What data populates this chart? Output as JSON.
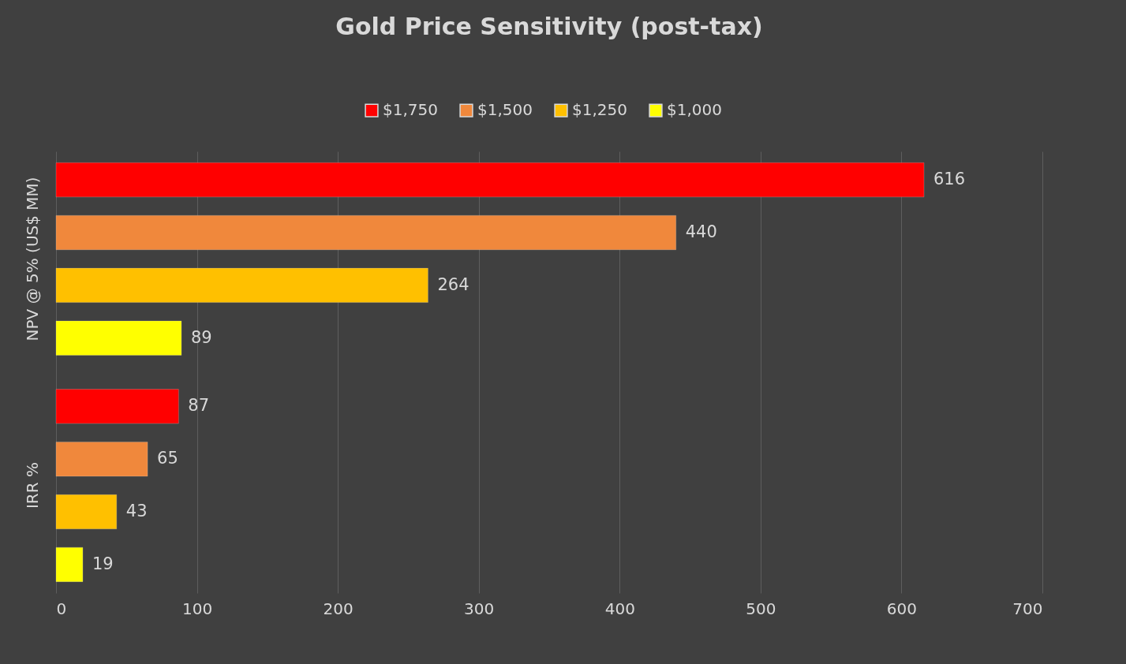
{
  "chart_data": {
    "type": "bar",
    "orientation": "horizontal",
    "title": "Gold Price Sensitivity (post-tax)",
    "categories": [
      "NPV @ 5% (US$ MM)",
      "IRR %"
    ],
    "series": [
      {
        "name": "$1,750",
        "color": "#ff0000",
        "values": [
          616,
          87
        ]
      },
      {
        "name": "$1,500",
        "color": "#f0883c",
        "values": [
          440,
          65
        ]
      },
      {
        "name": "$1,250",
        "color": "#ffc000",
        "values": [
          264,
          43
        ]
      },
      {
        "name": "$1,000",
        "color": "#ffff00",
        "values": [
          89,
          19
        ]
      }
    ],
    "xlim": [
      0,
      700
    ],
    "xticks": [
      0,
      100,
      200,
      300,
      400,
      500,
      600,
      700
    ],
    "grid": "x",
    "legend": "top",
    "data_labels": true
  }
}
